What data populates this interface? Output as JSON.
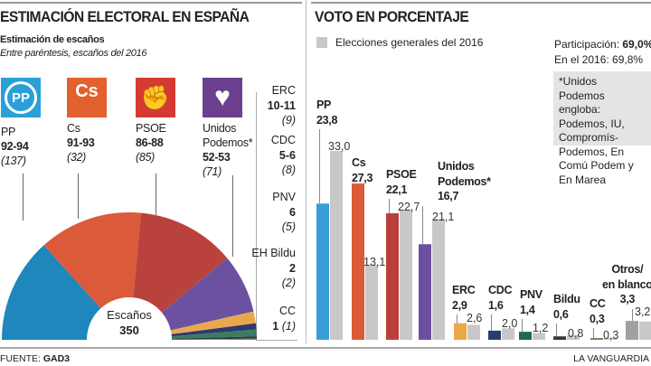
{
  "left": {
    "title": "ESTIMACIÓN ELECTORAL EN ESPAÑA",
    "subtitle": "Estimación de escaños",
    "note": "Entre paréntesis, escaños del 2016",
    "center_label": "Escaños",
    "center_value": "350"
  },
  "right": {
    "title": "VOTO EN PORCENTAJE",
    "legend": "Elecciones generales del 2016",
    "participation_label": "Participación: ",
    "participation_value": "69,0%",
    "participation_2016": "En el 2016: 69,8%",
    "footnote": "*Unidos Podemos engloba: Podemos, IU, Compromís-Podemos, En Comú Podem y En Marea"
  },
  "footer": {
    "source_label": "FUENTE: ",
    "source": "GAD3",
    "brand": "LA VANGUARDIA"
  },
  "chart_data": [
    {
      "type": "pie",
      "title": "Estimación de escaños",
      "total": 350,
      "parties": [
        {
          "name": "PP",
          "seats": "92-94",
          "low": 92,
          "high": 94,
          "seats_2016": "(137)",
          "color": "#1f87bb"
        },
        {
          "name": "Cs",
          "seats": "91-93",
          "low": 91,
          "high": 93,
          "seats_2016": "(32)",
          "color": "#db5a3a"
        },
        {
          "name": "PSOE",
          "seats": "86-88",
          "low": 86,
          "high": 88,
          "seats_2016": "(85)",
          "color": "#b9433c"
        },
        {
          "name": "Unidos Podemos*",
          "seats": "52-53",
          "low": 52,
          "high": 53,
          "seats_2016": "(71)",
          "color": "#6d51a1"
        },
        {
          "name": "ERC",
          "seats": "10-11",
          "low": 10,
          "high": 11,
          "seats_2016": "(9)",
          "color": "#e9a84c"
        },
        {
          "name": "CDC",
          "seats": "5-6",
          "low": 5,
          "high": 6,
          "seats_2016": "(8)",
          "color": "#2d3a70"
        },
        {
          "name": "PNV",
          "seats": "6",
          "low": 6,
          "high": 6,
          "seats_2016": "(5)",
          "color": "#3a7d5e"
        },
        {
          "name": "EH Bildu",
          "seats": "2",
          "low": 2,
          "high": 2,
          "seats_2016": "(2)",
          "color": "#2b3b48"
        },
        {
          "name": "CC",
          "seats": "1",
          "low": 1,
          "high": 1,
          "seats_2016": "(1)",
          "color": "#8a7a6a"
        }
      ]
    },
    {
      "type": "bar",
      "title": "VOTO EN PORCENTAJE",
      "ylim": [
        0,
        33
      ],
      "categories": [
        "PP",
        "Cs",
        "PSOE",
        "Unidos Podemos*",
        "ERC",
        "CDC",
        "PNV",
        "Bildu",
        "CC",
        "Otros/ en blanco"
      ],
      "labels": [
        [
          "PP"
        ],
        [
          "Cs"
        ],
        [
          "PSOE"
        ],
        [
          "Unidos",
          "Podemos*"
        ],
        [
          "ERC"
        ],
        [
          "CDC"
        ],
        [
          "PNV"
        ],
        [
          "Bildu"
        ],
        [
          "CC"
        ],
        [
          "Otros/",
          "en blanco"
        ]
      ],
      "series": [
        {
          "values": [
            23.8,
            27.3,
            22.1,
            16.7,
            2.9,
            1.6,
            1.4,
            0.6,
            0.3,
            3.3
          ],
          "display": [
            "23,8",
            "27,3",
            "22,1",
            "16,7",
            "2,9",
            "1,6",
            "1,4",
            "0,6",
            "0,3",
            "3,3"
          ],
          "colors": [
            "#3a9ed6",
            "#dc5a37",
            "#b9403a",
            "#6d4fa0",
            "#eaa84c",
            "#2d3a70",
            "#1f6b4a",
            "#2b3b48",
            "#8a7a6a",
            "#a0a0a0"
          ]
        },
        {
          "name": "Elecciones generales del 2016",
          "values": [
            33.0,
            13.1,
            22.7,
            21.1,
            2.6,
            2.0,
            1.2,
            0.8,
            0.3,
            3.2
          ],
          "display": [
            "33,0",
            "13,1",
            "22,7",
            "21,1",
            "2,6",
            "2,0",
            "1,2",
            "0,8",
            "0,3",
            "3,2"
          ],
          "color": "#c8c8c8"
        }
      ]
    }
  ]
}
